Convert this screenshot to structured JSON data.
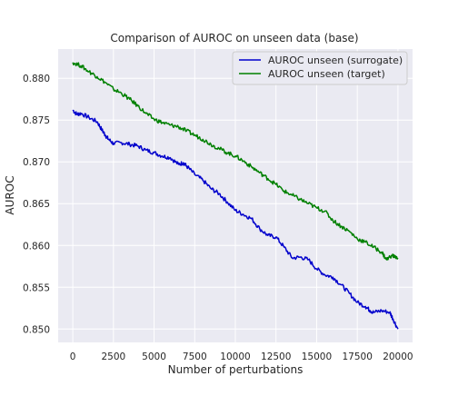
{
  "chart_data": {
    "type": "line",
    "title": "Comparison of AUROC on unseen data (base)",
    "xlabel": "Number of perturbations",
    "ylabel": "AUROC",
    "xlim": [
      -900,
      20900
    ],
    "ylim": [
      0.8484,
      0.8835
    ],
    "x_ticks": [
      0,
      2500,
      5000,
      7500,
      10000,
      12500,
      15000,
      17500,
      20000
    ],
    "y_ticks": [
      0.85,
      0.855,
      0.86,
      0.865,
      0.87,
      0.875,
      0.88
    ],
    "x_tick_labels": [
      "0",
      "2500",
      "5000",
      "7500",
      "10000",
      "12500",
      "15000",
      "17500",
      "20000"
    ],
    "y_tick_labels": [
      "0.850",
      "0.855",
      "0.860",
      "0.865",
      "0.870",
      "0.875",
      "0.880"
    ],
    "grid": true,
    "background": "#eaeaf2",
    "legend_position": "top-right",
    "series": [
      {
        "name": "AUROC unseen (surrogate)",
        "color": "#0000cc",
        "x": [
          0,
          250,
          500,
          1000,
          1500,
          1800,
          2000,
          2200,
          2500,
          3000,
          3500,
          4000,
          4500,
          5000,
          5500,
          6000,
          6500,
          6800,
          7000,
          7500,
          8000,
          8500,
          9000,
          9500,
          10000,
          10500,
          11000,
          11500,
          12000,
          12500,
          13000,
          13500,
          14000,
          14500,
          15000,
          15500,
          16000,
          16500,
          17000,
          17500,
          18000,
          18300,
          18500,
          19000,
          19500,
          19700,
          20000
        ],
        "y": [
          0.8762,
          0.8757,
          0.8758,
          0.8753,
          0.8748,
          0.8738,
          0.8732,
          0.8727,
          0.8722,
          0.8723,
          0.8721,
          0.8719,
          0.8714,
          0.8711,
          0.8707,
          0.8705,
          0.8697,
          0.8699,
          0.8695,
          0.8685,
          0.8678,
          0.8668,
          0.8662,
          0.8652,
          0.8642,
          0.8637,
          0.8632,
          0.862,
          0.8612,
          0.861,
          0.8598,
          0.8585,
          0.8586,
          0.8583,
          0.8572,
          0.8565,
          0.8562,
          0.8553,
          0.8543,
          0.8532,
          0.8527,
          0.8522,
          0.852,
          0.8522,
          0.852,
          0.8512,
          0.85
        ]
      },
      {
        "name": "AUROC unseen (target)",
        "color": "#008000",
        "x": [
          0,
          500,
          1000,
          1500,
          2000,
          2500,
          3000,
          3500,
          4000,
          4500,
          5000,
          5500,
          6000,
          6500,
          7000,
          7500,
          8000,
          8500,
          9000,
          9500,
          10000,
          10500,
          11000,
          11500,
          12000,
          12500,
          13000,
          13500,
          14000,
          14500,
          15000,
          15500,
          16000,
          16500,
          17000,
          17500,
          18000,
          18500,
          19000,
          19300,
          19600,
          20000
        ],
        "y": [
          0.8819,
          0.8815,
          0.8808,
          0.8802,
          0.8795,
          0.8787,
          0.8782,
          0.8775,
          0.8767,
          0.8758,
          0.8751,
          0.8747,
          0.8744,
          0.8742,
          0.8737,
          0.8732,
          0.8727,
          0.8721,
          0.8716,
          0.8711,
          0.8707,
          0.8701,
          0.8694,
          0.8687,
          0.868,
          0.8673,
          0.8665,
          0.866,
          0.8655,
          0.865,
          0.8645,
          0.8641,
          0.863,
          0.8623,
          0.8617,
          0.8608,
          0.8604,
          0.8598,
          0.8592,
          0.8583,
          0.8588,
          0.8585
        ]
      }
    ]
  }
}
